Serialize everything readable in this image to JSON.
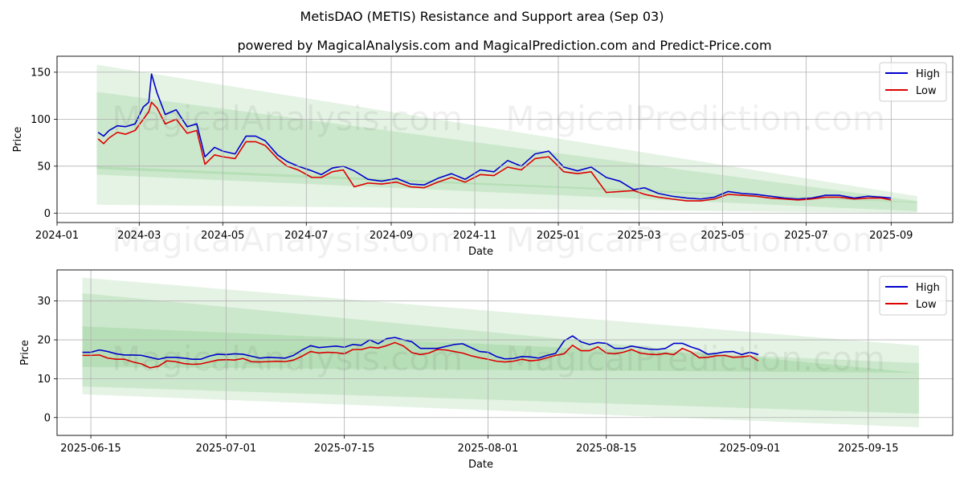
{
  "title": "MetisDAO (METIS) Resistance and Support area (Sep 03)",
  "subtitle": "powered by MagicalAnalysis.com and MagicalPrediction.com and Predict-Price.com",
  "watermark": "MagicalAnalysis.com    MagicalPrediction.com",
  "colors": {
    "high": "#0000cc",
    "low": "#dd0000",
    "band": "#2ca02c",
    "grid": "#b0b0b0"
  },
  "chart_data": [
    {
      "type": "line",
      "xlabel": "Date",
      "ylabel": "Price",
      "xlim": [
        "2024-01-01",
        "2025-10-16"
      ],
      "ylim": [
        -10,
        167
      ],
      "xticks": [
        "2024-01",
        "2024-03",
        "2024-05",
        "2024-07",
        "2024-09",
        "2024-11",
        "2025-01",
        "2025-03",
        "2025-05",
        "2025-07",
        "2025-09"
      ],
      "xtick_dates": [
        "2024-01-01",
        "2024-03-01",
        "2024-05-01",
        "2024-07-01",
        "2024-09-01",
        "2024-11-01",
        "2025-01-01",
        "2025-03-01",
        "2025-05-01",
        "2025-07-01",
        "2025-09-01"
      ],
      "yticks": [
        0,
        50,
        100,
        150
      ],
      "legend": "top-right",
      "grid": true,
      "bands": [
        {
          "x": [
            "2024-01-30",
            "2025-09-20"
          ],
          "upper": [
            158,
            18
          ],
          "lower": [
            9,
            0
          ]
        },
        {
          "x": [
            "2024-01-30",
            "2025-09-20"
          ],
          "upper": [
            129,
            13
          ],
          "lower": [
            41,
            2
          ]
        },
        {
          "x": [
            "2024-01-30",
            "2025-09-20"
          ],
          "upper": [
            50,
            12
          ],
          "lower": [
            47,
            11
          ]
        }
      ],
      "series": [
        {
          "name": "High",
          "dates": [
            "2024-01-31",
            "2024-02-04",
            "2024-02-08",
            "2024-02-14",
            "2024-02-20",
            "2024-02-27",
            "2024-03-04",
            "2024-03-08",
            "2024-03-10",
            "2024-03-14",
            "2024-03-20",
            "2024-03-28",
            "2024-04-05",
            "2024-04-12",
            "2024-04-18",
            "2024-04-25",
            "2024-05-01",
            "2024-05-10",
            "2024-05-18",
            "2024-05-25",
            "2024-06-01",
            "2024-06-10",
            "2024-06-17",
            "2024-06-25",
            "2024-07-05",
            "2024-07-12",
            "2024-07-20",
            "2024-07-28",
            "2024-08-05",
            "2024-08-15",
            "2024-08-25",
            "2024-09-05",
            "2024-09-15",
            "2024-09-25",
            "2024-10-05",
            "2024-10-15",
            "2024-10-25",
            "2024-11-05",
            "2024-11-15",
            "2024-11-25",
            "2024-12-05",
            "2024-12-15",
            "2024-12-25",
            "2025-01-05",
            "2025-01-15",
            "2025-01-25",
            "2025-02-05",
            "2025-02-15",
            "2025-02-25",
            "2025-03-05",
            "2025-03-15",
            "2025-03-25",
            "2025-04-05",
            "2025-04-15",
            "2025-04-25",
            "2025-05-05",
            "2025-05-15",
            "2025-05-25",
            "2025-06-05",
            "2025-06-15",
            "2025-06-25",
            "2025-07-05",
            "2025-07-15",
            "2025-07-25",
            "2025-08-05",
            "2025-08-15",
            "2025-08-25",
            "2025-09-01"
          ],
          "values": [
            86,
            82,
            88,
            93,
            92,
            95,
            113,
            118,
            148,
            128,
            105,
            110,
            92,
            95,
            60,
            70,
            66,
            63,
            82,
            82,
            77,
            62,
            55,
            50,
            45,
            41,
            48,
            50,
            45,
            36,
            34,
            37,
            31,
            30,
            37,
            42,
            36,
            46,
            44,
            56,
            50,
            63,
            66,
            49,
            45,
            49,
            38,
            34,
            25,
            27,
            21,
            18,
            16,
            15,
            17,
            23,
            21,
            20,
            18,
            16,
            15,
            16,
            19,
            19,
            16,
            18,
            17,
            16
          ]
        },
        {
          "name": "Low",
          "dates": [
            "2024-01-31",
            "2024-02-04",
            "2024-02-08",
            "2024-02-14",
            "2024-02-20",
            "2024-02-27",
            "2024-03-04",
            "2024-03-08",
            "2024-03-10",
            "2024-03-14",
            "2024-03-20",
            "2024-03-28",
            "2024-04-05",
            "2024-04-12",
            "2024-04-18",
            "2024-04-25",
            "2024-05-01",
            "2024-05-10",
            "2024-05-18",
            "2024-05-25",
            "2024-06-01",
            "2024-06-10",
            "2024-06-17",
            "2024-06-25",
            "2024-07-05",
            "2024-07-12",
            "2024-07-20",
            "2024-07-28",
            "2024-08-05",
            "2024-08-15",
            "2024-08-25",
            "2024-09-05",
            "2024-09-15",
            "2024-09-25",
            "2024-10-05",
            "2024-10-15",
            "2024-10-25",
            "2024-11-05",
            "2024-11-15",
            "2024-11-25",
            "2024-12-05",
            "2024-12-15",
            "2024-12-25",
            "2025-01-05",
            "2025-01-15",
            "2025-01-25",
            "2025-02-05",
            "2025-02-15",
            "2025-02-25",
            "2025-03-05",
            "2025-03-15",
            "2025-03-25",
            "2025-04-05",
            "2025-04-15",
            "2025-04-25",
            "2025-05-05",
            "2025-05-15",
            "2025-05-25",
            "2025-06-05",
            "2025-06-15",
            "2025-06-25",
            "2025-07-05",
            "2025-07-15",
            "2025-07-25",
            "2025-08-05",
            "2025-08-15",
            "2025-08-25",
            "2025-09-01"
          ],
          "values": [
            79,
            74,
            80,
            86,
            84,
            88,
            100,
            108,
            118,
            112,
            95,
            100,
            85,
            88,
            52,
            62,
            60,
            58,
            76,
            76,
            72,
            58,
            50,
            46,
            38,
            38,
            44,
            46,
            28,
            32,
            31,
            33,
            28,
            27,
            33,
            38,
            33,
            41,
            40,
            49,
            46,
            58,
            60,
            44,
            42,
            44,
            22,
            23,
            24,
            20,
            17,
            15,
            13,
            13,
            15,
            20,
            19,
            18,
            16,
            15,
            14,
            15,
            17,
            17,
            15,
            16,
            16,
            14
          ]
        }
      ]
    },
    {
      "type": "line",
      "xlabel": "Date",
      "ylabel": "Price",
      "xlim": [
        "2025-06-11",
        "2025-09-25"
      ],
      "ylim": [
        -4.6,
        38
      ],
      "xticks": [
        "2025-06-15",
        "2025-07-01",
        "2025-07-15",
        "2025-08-01",
        "2025-08-15",
        "2025-09-01",
        "2025-09-15"
      ],
      "xtick_dates": [
        "2025-06-15",
        "2025-07-01",
        "2025-07-15",
        "2025-08-01",
        "2025-08-15",
        "2025-09-01",
        "2025-09-15"
      ],
      "yticks": [
        0,
        10,
        20,
        30
      ],
      "legend": "top-right",
      "grid": true,
      "bands": [
        {
          "x": [
            "2025-06-14",
            "2025-09-21"
          ],
          "upper": [
            36,
            18.5
          ],
          "lower": [
            6,
            -2.5
          ]
        },
        {
          "x": [
            "2025-06-14",
            "2025-09-21"
          ],
          "upper": [
            32,
            11.5
          ],
          "lower": [
            8,
            1
          ]
        },
        {
          "x": [
            "2025-06-14",
            "2025-09-21"
          ],
          "upper": [
            23.5,
            14
          ],
          "lower": [
            13,
            11.5
          ]
        }
      ],
      "series": [
        {
          "name": "High",
          "start": "2025-06-14",
          "values": [
            16.8,
            16.8,
            17.4,
            17.0,
            16.4,
            16.1,
            16.1,
            16.0,
            15.5,
            15.0,
            15.5,
            15.5,
            15.3,
            15.0,
            15.0,
            15.8,
            16.3,
            16.2,
            16.4,
            16.3,
            15.8,
            15.3,
            15.5,
            15.4,
            15.3,
            16.0,
            17.4,
            18.5,
            18.0,
            18.2,
            18.4,
            18.1,
            18.8,
            18.6,
            20.0,
            19.0,
            20.3,
            20.6,
            20.0,
            19.5,
            17.8,
            17.8,
            17.8,
            18.3,
            18.8,
            19.0,
            18.0,
            17.0,
            16.8,
            15.7,
            15.1,
            15.2,
            15.7,
            15.6,
            15.3,
            16.0,
            16.5,
            19.7,
            21.0,
            19.5,
            18.8,
            19.3,
            19.1,
            17.8,
            17.8,
            18.4,
            18.0,
            17.6,
            17.5,
            17.8,
            19.1,
            19.1,
            18.2,
            17.5,
            16.3,
            16.5,
            16.9,
            17.0,
            16.2,
            16.8,
            16.2
          ]
        },
        {
          "name": "Low",
          "start": "2025-06-14",
          "values": [
            16.0,
            16.0,
            16.1,
            15.3,
            15.0,
            15.0,
            14.3,
            13.8,
            12.8,
            13.2,
            14.6,
            14.4,
            13.9,
            13.7,
            13.8,
            14.3,
            14.8,
            14.9,
            14.8,
            15.2,
            14.4,
            14.3,
            14.4,
            14.5,
            14.4,
            14.8,
            15.8,
            17.0,
            16.6,
            16.8,
            16.7,
            16.4,
            17.5,
            17.5,
            18.1,
            17.9,
            18.5,
            19.3,
            18.4,
            16.7,
            16.2,
            16.6,
            17.5,
            17.4,
            17.0,
            16.6,
            15.9,
            15.4,
            15.0,
            14.5,
            14.3,
            14.5,
            15.0,
            14.6,
            14.8,
            15.4,
            16.0,
            16.4,
            18.6,
            17.2,
            17.2,
            18.2,
            16.6,
            16.4,
            16.8,
            17.5,
            16.6,
            16.3,
            16.2,
            16.5,
            16.2,
            17.8,
            16.9,
            15.4,
            15.5,
            15.9,
            16.0,
            15.5,
            15.6,
            15.9,
            14.6
          ]
        }
      ]
    }
  ]
}
